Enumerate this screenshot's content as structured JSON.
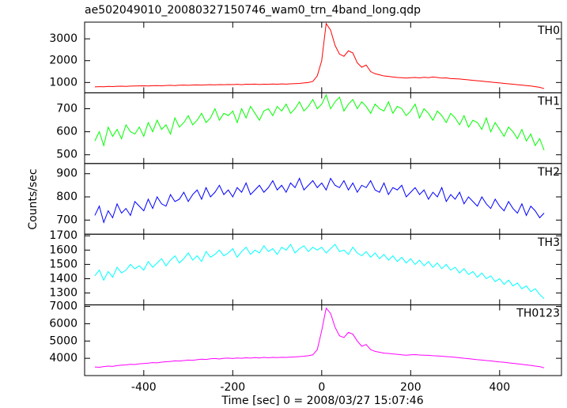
{
  "chart_data": {
    "type": "line",
    "title": "ae502049010_20080327150746_wam0_trn_4band_long.qdp",
    "x_label": "Time [sec] 0 = 2008/03/27 15:07:46",
    "y_label": "Counts/sec",
    "xlim": [
      -533,
      539
    ],
    "xticks": [
      -400,
      -200,
      0,
      200,
      400
    ],
    "x": [
      -510,
      -500,
      -490,
      -480,
      -470,
      -460,
      -450,
      -440,
      -430,
      -420,
      -410,
      -400,
      -390,
      -380,
      -370,
      -360,
      -350,
      -340,
      -330,
      -320,
      -310,
      -300,
      -290,
      -280,
      -270,
      -260,
      -250,
      -240,
      -230,
      -220,
      -210,
      -200,
      -190,
      -180,
      -170,
      -160,
      -150,
      -140,
      -130,
      -120,
      -110,
      -100,
      -90,
      -80,
      -70,
      -60,
      -50,
      -40,
      -30,
      -20,
      -10,
      0,
      10,
      20,
      30,
      40,
      50,
      60,
      70,
      80,
      90,
      100,
      110,
      120,
      130,
      140,
      150,
      160,
      170,
      180,
      190,
      200,
      210,
      220,
      230,
      240,
      250,
      260,
      270,
      280,
      290,
      300,
      310,
      320,
      330,
      340,
      350,
      360,
      370,
      380,
      390,
      400,
      410,
      420,
      430,
      440,
      450,
      460,
      470,
      480,
      490,
      500
    ],
    "series": [
      {
        "name": "TH0",
        "color": "#ff0000",
        "ylim": [
          527,
          3764
        ],
        "yticks": [
          1000,
          2000,
          3000
        ],
        "values": [
          800,
          810,
          805,
          820,
          815,
          825,
          830,
          820,
          835,
          840,
          845,
          850,
          840,
          855,
          860,
          850,
          865,
          870,
          860,
          875,
          880,
          870,
          885,
          890,
          880,
          895,
          900,
          890,
          905,
          900,
          910,
          905,
          915,
          900,
          920,
          915,
          925,
          910,
          920,
          915,
          930,
          920,
          935,
          925,
          940,
          950,
          960,
          980,
          1000,
          1050,
          1300,
          2000,
          3700,
          3400,
          2700,
          2300,
          2200,
          2450,
          2350,
          1900,
          1700,
          1800,
          1500,
          1400,
          1350,
          1300,
          1280,
          1250,
          1230,
          1220,
          1200,
          1220,
          1230,
          1210,
          1240,
          1220,
          1250,
          1230,
          1200,
          1210,
          1180,
          1170,
          1160,
          1140,
          1120,
          1100,
          1080,
          1060,
          1040,
          1020,
          1000,
          980,
          960,
          940,
          920,
          900,
          880,
          860,
          840,
          810,
          780,
          720
        ]
      },
      {
        "name": "TH1",
        "color": "#00ff00",
        "ylim": [
          462,
          769
        ],
        "yticks": [
          500,
          600,
          700
        ],
        "values": [
          560,
          600,
          540,
          620,
          580,
          610,
          570,
          630,
          600,
          590,
          620,
          580,
          640,
          600,
          650,
          610,
          630,
          590,
          660,
          620,
          640,
          670,
          630,
          650,
          680,
          640,
          660,
          700,
          650,
          680,
          670,
          690,
          640,
          700,
          660,
          710,
          680,
          650,
          690,
          700,
          670,
          710,
          690,
          720,
          680,
          700,
          730,
          690,
          710,
          740,
          700,
          720,
          760,
          700,
          730,
          750,
          690,
          720,
          740,
          700,
          730,
          710,
          680,
          720,
          700,
          690,
          730,
          680,
          710,
          700,
          670,
          690,
          720,
          660,
          700,
          680,
          650,
          690,
          670,
          640,
          680,
          660,
          630,
          670,
          620,
          650,
          640,
          610,
          660,
          600,
          640,
          610,
          580,
          620,
          600,
          570,
          610,
          560,
          590,
          540,
          570,
          520
        ]
      },
      {
        "name": "TH2",
        "color": "#0000ff",
        "ylim": [
          639,
          944
        ],
        "yticks": [
          700,
          800,
          900
        ],
        "values": [
          720,
          760,
          690,
          740,
          710,
          770,
          730,
          750,
          720,
          780,
          760,
          740,
          790,
          750,
          800,
          770,
          760,
          810,
          780,
          790,
          820,
          780,
          810,
          830,
          790,
          840,
          800,
          820,
          850,
          810,
          830,
          800,
          840,
          820,
          860,
          810,
          830,
          850,
          820,
          840,
          870,
          830,
          850,
          820,
          860,
          840,
          880,
          830,
          850,
          870,
          840,
          860,
          830,
          880,
          850,
          840,
          870,
          830,
          860,
          820,
          850,
          840,
          870,
          830,
          820,
          860,
          810,
          840,
          830,
          850,
          800,
          820,
          840,
          810,
          830,
          790,
          820,
          800,
          840,
          780,
          810,
          790,
          820,
          770,
          800,
          780,
          760,
          800,
          770,
          750,
          790,
          760,
          740,
          780,
          750,
          730,
          770,
          720,
          760,
          740,
          710,
          730
        ]
      },
      {
        "name": "TH3",
        "color": "#00ffff",
        "ylim": [
          1217,
          1711
        ],
        "yticks": [
          1300,
          1400,
          1500,
          1600,
          1700
        ],
        "values": [
          1420,
          1460,
          1390,
          1450,
          1410,
          1480,
          1440,
          1460,
          1500,
          1470,
          1490,
          1460,
          1520,
          1480,
          1510,
          1540,
          1490,
          1530,
          1560,
          1510,
          1540,
          1580,
          1530,
          1560,
          1520,
          1590,
          1550,
          1570,
          1600,
          1560,
          1580,
          1610,
          1550,
          1590,
          1620,
          1570,
          1600,
          1580,
          1630,
          1590,
          1610,
          1570,
          1620,
          1600,
          1640,
          1580,
          1610,
          1630,
          1590,
          1620,
          1600,
          1620,
          1580,
          1610,
          1640,
          1590,
          1600,
          1570,
          1620,
          1580,
          1560,
          1590,
          1550,
          1580,
          1540,
          1570,
          1530,
          1560,
          1520,
          1550,
          1510,
          1540,
          1500,
          1530,
          1490,
          1520,
          1480,
          1510,
          1470,
          1500,
          1460,
          1480,
          1440,
          1470,
          1430,
          1450,
          1410,
          1440,
          1400,
          1420,
          1380,
          1400,
          1360,
          1390,
          1350,
          1370,
          1330,
          1350,
          1310,
          1330,
          1290,
          1260
        ]
      },
      {
        "name": "TH0123",
        "color": "#ff00ff",
        "ylim": [
          3000,
          7091
        ],
        "yticks": [
          4000,
          5000,
          6000,
          7000
        ],
        "values": [
          3500,
          3480,
          3520,
          3550,
          3530,
          3580,
          3600,
          3620,
          3650,
          3640,
          3680,
          3700,
          3720,
          3750,
          3740,
          3780,
          3800,
          3820,
          3850,
          3840,
          3870,
          3900,
          3880,
          3920,
          3950,
          3930,
          3970,
          3990,
          3960,
          4000,
          4010,
          3990,
          4020,
          4000,
          4030,
          4010,
          4040,
          4020,
          4050,
          4030,
          4050,
          4040,
          4060,
          4050,
          4070,
          4080,
          4100,
          4120,
          4150,
          4200,
          4500,
          5600,
          6900,
          6600,
          5800,
          5300,
          5200,
          5500,
          5400,
          5000,
          4700,
          4800,
          4500,
          4400,
          4350,
          4300,
          4280,
          4250,
          4230,
          4200,
          4180,
          4200,
          4210,
          4190,
          4180,
          4170,
          4150,
          4140,
          4120,
          4100,
          4080,
          4060,
          4030,
          4000,
          3980,
          3950,
          3920,
          3900,
          3870,
          3850,
          3820,
          3790,
          3770,
          3740,
          3710,
          3680,
          3650,
          3620,
          3590,
          3550,
          3520,
          3450
        ]
      }
    ]
  }
}
